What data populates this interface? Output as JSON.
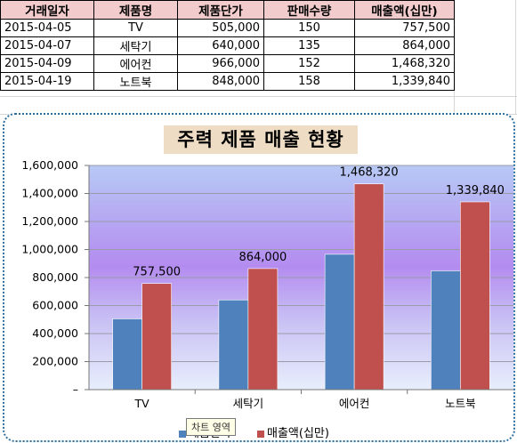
{
  "sheet": {
    "headers": [
      "거래일자",
      "제품명",
      "제품단가",
      "판매수량",
      "매출액(십만)"
    ],
    "rows": [
      [
        "2015-04-05",
        "TV",
        "505,000",
        "150",
        "757,500"
      ],
      [
        "2015-04-07",
        "세탁기",
        "640,000",
        "135",
        "864,000"
      ],
      [
        "2015-04-09",
        "에어컨",
        "966,000",
        "152",
        "1,468,320"
      ],
      [
        "2015-04-19",
        "노트북",
        "848,000",
        "158",
        "1,339,840"
      ]
    ]
  },
  "chart": {
    "tooltip": "차트 영역"
  },
  "colors": {
    "series1": "#4f81bd",
    "series2": "#c0504d",
    "header_fill": "#f2cccc",
    "title_fill": "#efdcc4",
    "chart_border": "#2e6e9e"
  },
  "chart_data": {
    "type": "bar",
    "title": "주력 제품 매출 현황",
    "categories": [
      "TV",
      "세탁기",
      "에어컨",
      "노트북"
    ],
    "series": [
      {
        "name": "제품단가",
        "values": [
          505000,
          640000,
          966000,
          848000
        ]
      },
      {
        "name": "매출액(십만)",
        "values": [
          757500,
          864000,
          1468320,
          1339840
        ],
        "labels": [
          "757,500",
          "864,000",
          "1,468,320",
          "1,339,840"
        ]
      }
    ],
    "y_ticks": [
      "–",
      "200,000",
      "400,000",
      "600,000",
      "800,000",
      "1,000,000",
      "1,200,000",
      "1,400,000",
      "1,600,000"
    ],
    "ylim": [
      0,
      1600000
    ],
    "grid": true,
    "legend": "bottom"
  }
}
